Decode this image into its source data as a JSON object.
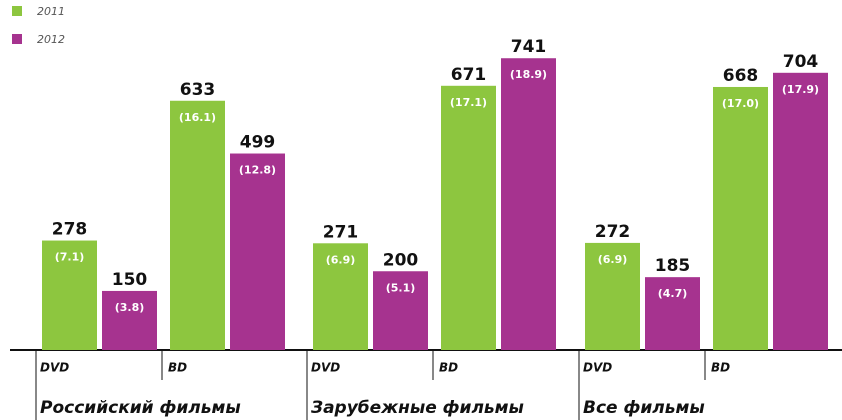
{
  "chart_data": {
    "type": "bar",
    "groups": [
      "Российский фильмы",
      "Зарубежные фильмы",
      "Все фильмы"
    ],
    "categories": [
      "DVD",
      "BD",
      "DVD",
      "BD",
      "DVD",
      "BD"
    ],
    "series": [
      {
        "name": "2011",
        "color": "#8dc63f",
        "values": [
          278,
          633,
          271,
          671,
          272,
          668
        ],
        "sub_labels": [
          "(7.1)",
          "(16.1)",
          "(6.9)",
          "(17.1)",
          "(6.9)",
          "(17.0)"
        ]
      },
      {
        "name": "2012",
        "color": "#a6338f",
        "values": [
          150,
          499,
          200,
          741,
          185,
          704
        ],
        "sub_labels": [
          "(3.8)",
          "(12.8)",
          "(5.1)",
          "(18.9)",
          "(4.7)",
          "(17.9)"
        ]
      }
    ],
    "ylim": [
      0,
      800
    ]
  }
}
